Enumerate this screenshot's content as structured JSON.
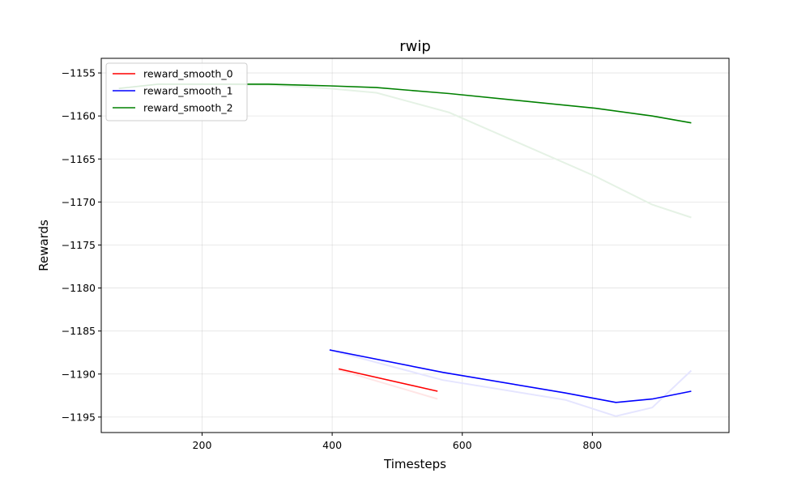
{
  "chart_data": {
    "type": "line",
    "title": "rwip",
    "xlabel": "Timesteps",
    "ylabel": "Rewards",
    "xlim": [
      45,
      1010
    ],
    "ylim": [
      -1196.8,
      -1153.3
    ],
    "xticks": [
      200,
      400,
      600,
      800
    ],
    "yticks": [
      -1155,
      -1160,
      -1165,
      -1170,
      -1175,
      -1180,
      -1185,
      -1190,
      -1195
    ],
    "grid": true,
    "legend_position": "top-left",
    "series": [
      {
        "name": "reward_smooth_0",
        "color": "#ff0000",
        "raw_color": "#ffe5e5",
        "x": [
          410,
          562
        ],
        "smoothed": [
          -1189.4,
          -1192.0
        ],
        "raw": [
          -1189.5,
          -1192.9
        ]
      },
      {
        "name": "reward_smooth_1",
        "color": "#0000ff",
        "raw_color": "#e5e5ff",
        "x": [
          396,
          570,
          758,
          836,
          892,
          952
        ],
        "smoothed": [
          -1187.2,
          -1189.8,
          -1192.2,
          -1193.3,
          -1192.9,
          -1192.0
        ],
        "raw": [
          -1187.2,
          -1190.7,
          -1193.0,
          -1194.9,
          -1193.9,
          -1189.6
        ]
      },
      {
        "name": "reward_smooth_2",
        "color": "#008000",
        "raw_color": "#e5f2e5",
        "x": [
          72,
          132,
          302,
          396,
          468,
          580,
          804,
          892,
          952
        ],
        "smoothed": [
          -1156.8,
          -1156.3,
          -1156.3,
          -1156.5,
          -1156.7,
          -1157.4,
          -1159.1,
          -1160.0,
          -1160.8
        ],
        "raw": [
          -1156.8,
          -1156.3,
          -1156.4,
          -1156.8,
          -1157.3,
          -1159.6,
          -1167.0,
          -1170.3,
          -1171.8
        ]
      }
    ]
  }
}
